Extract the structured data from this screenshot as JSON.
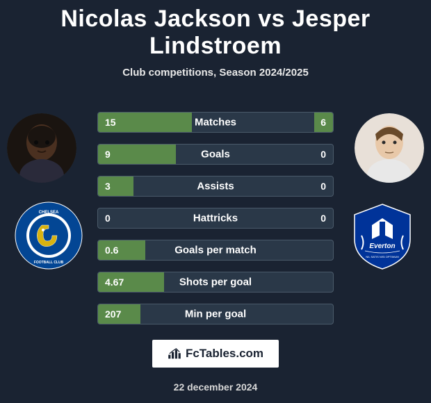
{
  "title": "Nicolas Jackson vs Jesper Lindstroem",
  "subtitle": "Club competitions, Season 2024/2025",
  "date": "22 december 2024",
  "brand": "FcTables.com",
  "colors": {
    "background": "#1a2332",
    "bar_fill": "#5a8a4a",
    "bar_track": "#2a3848",
    "bar_border": "#4a5a6a",
    "text": "#ffffff",
    "crest_left_primary": "#034694",
    "crest_left_accent": "#d9b310",
    "crest_right_primary": "#003399",
    "crest_right_accent": "#ffffff"
  },
  "players": {
    "left": {
      "name": "Nicolas Jackson",
      "club": "Chelsea"
    },
    "right": {
      "name": "Jesper Lindstroem",
      "club": "Everton"
    }
  },
  "stats": [
    {
      "label": "Matches",
      "left_val": "15",
      "right_val": "6",
      "left_pct": 40,
      "right_pct": 8
    },
    {
      "label": "Goals",
      "left_val": "9",
      "right_val": "0",
      "left_pct": 33,
      "right_pct": 0
    },
    {
      "label": "Assists",
      "left_val": "3",
      "right_val": "0",
      "left_pct": 15,
      "right_pct": 0
    },
    {
      "label": "Hattricks",
      "left_val": "0",
      "right_val": "0",
      "left_pct": 0,
      "right_pct": 0
    },
    {
      "label": "Goals per match",
      "left_val": "0.6",
      "right_val": "",
      "left_pct": 20,
      "right_pct": 0
    },
    {
      "label": "Shots per goal",
      "left_val": "4.67",
      "right_val": "",
      "left_pct": 28,
      "right_pct": 0
    },
    {
      "label": "Min per goal",
      "left_val": "207",
      "right_val": "",
      "left_pct": 18,
      "right_pct": 0
    }
  ]
}
